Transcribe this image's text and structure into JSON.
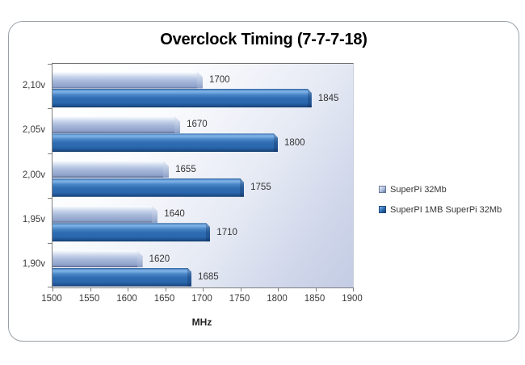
{
  "chart_data": {
    "type": "bar",
    "orientation": "horizontal",
    "title": "Overclock Timing (7-7-7-18)",
    "categories": [
      "2,10v",
      "2,05v",
      "2,00v",
      "1,95v",
      "1,90v"
    ],
    "series": [
      {
        "name": "SuperPi 32Mb",
        "values": [
          1700,
          1670,
          1655,
          1640,
          1620
        ]
      },
      {
        "name": "SuperPI 1MB SuperPi 32Mb",
        "values": [
          1845,
          1800,
          1755,
          1710,
          1685
        ]
      }
    ],
    "data_labels": true,
    "xlabel": "MHz",
    "xlim": [
      1500,
      1900
    ],
    "xtick_step": 50,
    "xtick_labels": [
      "1500",
      "1550",
      "1600",
      "1650",
      "1700",
      "1750",
      "1800",
      "1850",
      "1900"
    ],
    "grid": false,
    "legend_position": "middle-right",
    "colors": {
      "series1_mid": "#a7b8da",
      "series1_bottom": "#50608a",
      "series2_highlight": "#7fb3e8",
      "series2_mid": "#2e6cb2",
      "series2_bottom": "#123a69",
      "plot_bg_from": "#ffffff",
      "plot_bg_to": "#c3cce4",
      "axis": "#7f7f7f",
      "frame_border": "#9aa0a6"
    }
  }
}
